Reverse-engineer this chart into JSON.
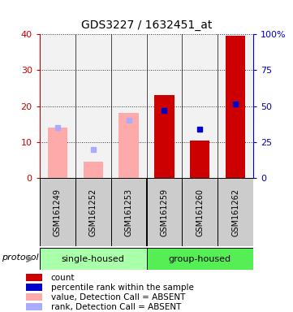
{
  "title": "GDS3227 / 1632451_at",
  "samples": [
    "GSM161249",
    "GSM161252",
    "GSM161253",
    "GSM161259",
    "GSM161260",
    "GSM161262"
  ],
  "absent_value": [
    14.0,
    4.5,
    18.0,
    null,
    null,
    null
  ],
  "absent_rank_pct": [
    35.0,
    20.0,
    40.0,
    null,
    null,
    null
  ],
  "count_value": [
    null,
    null,
    null,
    23.0,
    10.5,
    39.5
  ],
  "percentile_rank_pct": [
    null,
    null,
    null,
    47.0,
    34.0,
    51.5
  ],
  "ylim_left": [
    0,
    40
  ],
  "ylim_right": [
    0,
    100
  ],
  "yticks_left": [
    0,
    10,
    20,
    30,
    40
  ],
  "yticks_right": [
    0,
    25,
    50,
    75,
    100
  ],
  "yticklabels_right": [
    "0",
    "25",
    "50",
    "75",
    "100%"
  ],
  "group_labels": [
    "single-housed",
    "group-housed"
  ],
  "group_colors": [
    "#aaffaa",
    "#55ee55"
  ],
  "color_count": "#cc0000",
  "color_pct_rank": "#0000cc",
  "color_absent_value": "#ffaaaa",
  "color_absent_rank": "#aaaaff",
  "color_left_axis": "#cc0000",
  "color_right_axis": "#0000cc",
  "color_sample_box": "#cccccc",
  "legend_items": [
    {
      "label": "count",
      "color": "#cc0000"
    },
    {
      "label": "percentile rank within the sample",
      "color": "#0000cc"
    },
    {
      "label": "value, Detection Call = ABSENT",
      "color": "#ffaaaa"
    },
    {
      "label": "rank, Detection Call = ABSENT",
      "color": "#aaaaff"
    }
  ],
  "protocol_label": "protocol"
}
